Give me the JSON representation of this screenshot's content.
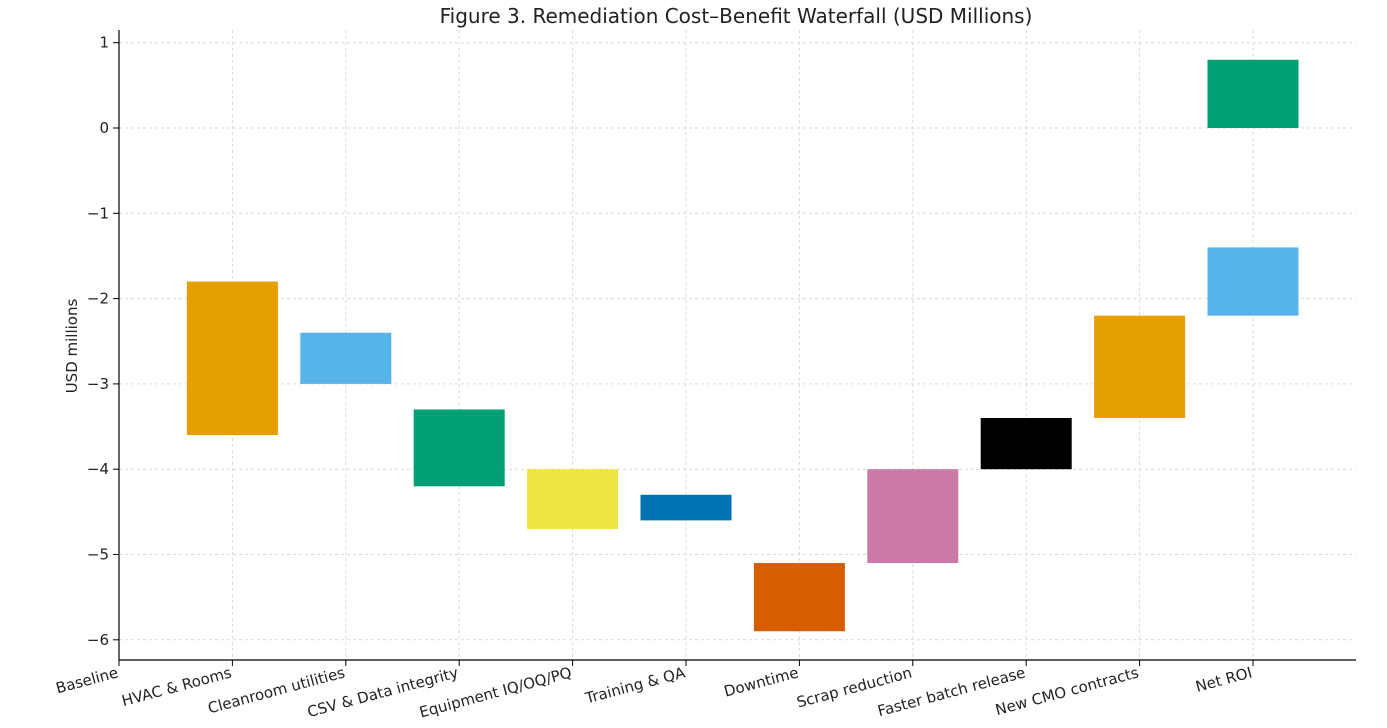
{
  "chart_data": {
    "type": "bar",
    "subtype": "waterfall",
    "title": "Figure 3. Remediation Cost–Benefit Waterfall (USD Millions)",
    "xlabel": "",
    "ylabel": "USD millions",
    "ylim": [
      -6.2,
      1.1
    ],
    "yticks": [
      1,
      0,
      -1,
      -2,
      -3,
      -4,
      -5,
      -6
    ],
    "ytick_labels": [
      "1",
      "0",
      "−1",
      "−2",
      "−3",
      "−4",
      "−5",
      "−6"
    ],
    "grid": true,
    "categories": [
      "Baseline",
      "HVAC & Rooms",
      "Cleanroom utilities",
      "CSV & Data integrity",
      "Equipment IQ/OQ/PQ",
      "Training & QA",
      "Downtime",
      "Scrap reduction",
      "Faster batch release",
      "New CMO contracts",
      "Net ROI"
    ],
    "bars": [
      {
        "category": "Baseline",
        "start": 0,
        "end": 0,
        "color": "#0072B2"
      },
      {
        "category": "HVAC & Rooms",
        "start": -1.8,
        "end": -3.6,
        "color": "#E69F00"
      },
      {
        "category": "Cleanroom utilities",
        "start": -2.4,
        "end": -3.0,
        "color": "#56B4E9"
      },
      {
        "category": "CSV & Data integrity",
        "start": -3.3,
        "end": -4.2,
        "color": "#009E73"
      },
      {
        "category": "Equipment IQ/OQ/PQ",
        "start": -4.0,
        "end": -4.7,
        "color": "#F0E442"
      },
      {
        "category": "Training & QA",
        "start": -4.3,
        "end": -4.6,
        "color": "#0072B2"
      },
      {
        "category": "Downtime",
        "start": -5.1,
        "end": -5.9,
        "color": "#D55E00"
      },
      {
        "category": "Scrap reduction",
        "start": -5.1,
        "end": -4.0,
        "color": "#CC79A7"
      },
      {
        "category": "Faster batch release",
        "start": -4.0,
        "end": -3.4,
        "color": "#000000"
      },
      {
        "category": "New CMO contracts",
        "start": -3.4,
        "end": -2.2,
        "color": "#E69F00"
      },
      {
        "category": "Net ROI",
        "start": -2.2,
        "end": -1.4,
        "color": "#56B4E9"
      },
      {
        "category": "Net ROI",
        "start": 0,
        "end": 0.8,
        "color": "#009E73"
      }
    ]
  }
}
